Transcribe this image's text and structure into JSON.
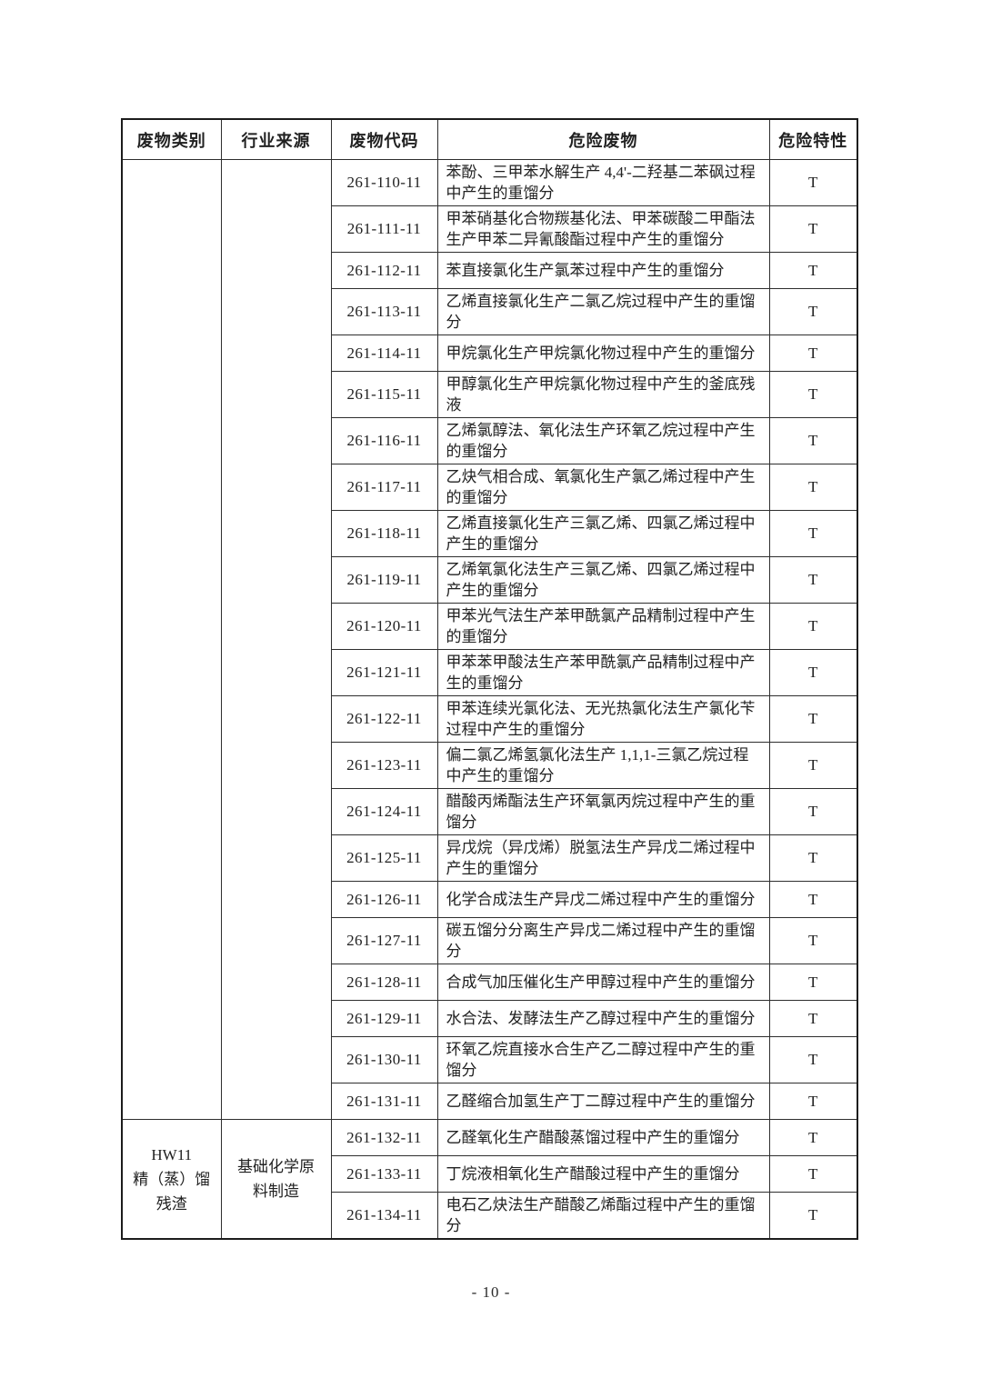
{
  "page": {
    "number_label": "- 10 -"
  },
  "table": {
    "columns": [
      "废物类别",
      "行业来源",
      "废物代码",
      "危险废物",
      "危险特性"
    ],
    "sections": [
      {
        "category": "",
        "industry": "",
        "rows": [
          {
            "code": "261-110-11",
            "waste": "苯酚、三甲苯水解生产 4,4'-二羟基二苯砜过程中产生的重馏分",
            "hazard": "T"
          },
          {
            "code": "261-111-11",
            "waste": "甲苯硝基化合物羰基化法、甲苯碳酸二甲酯法生产甲苯二异氰酸酯过程中产生的重馏分",
            "hazard": "T"
          },
          {
            "code": "261-112-11",
            "waste": "苯直接氯化生产氯苯过程中产生的重馏分",
            "hazard": "T"
          },
          {
            "code": "261-113-11",
            "waste": "乙烯直接氯化生产二氯乙烷过程中产生的重馏分",
            "hazard": "T"
          },
          {
            "code": "261-114-11",
            "waste": "甲烷氯化生产甲烷氯化物过程中产生的重馏分",
            "hazard": "T"
          },
          {
            "code": "261-115-11",
            "waste": "甲醇氯化生产甲烷氯化物过程中产生的釜底残液",
            "hazard": "T"
          },
          {
            "code": "261-116-11",
            "waste": "乙烯氯醇法、氧化法生产环氧乙烷过程中产生的重馏分",
            "hazard": "T"
          },
          {
            "code": "261-117-11",
            "waste": "乙炔气相合成、氧氯化生产氯乙烯过程中产生的重馏分",
            "hazard": "T"
          },
          {
            "code": "261-118-11",
            "waste": "乙烯直接氯化生产三氯乙烯、四氯乙烯过程中产生的重馏分",
            "hazard": "T"
          },
          {
            "code": "261-119-11",
            "waste": "乙烯氧氯化法生产三氯乙烯、四氯乙烯过程中产生的重馏分",
            "hazard": "T"
          },
          {
            "code": "261-120-11",
            "waste": "甲苯光气法生产苯甲酰氯产品精制过程中产生的重馏分",
            "hazard": "T"
          },
          {
            "code": "261-121-11",
            "waste": "甲苯苯甲酸法生产苯甲酰氯产品精制过程中产生的重馏分",
            "hazard": "T"
          },
          {
            "code": "261-122-11",
            "waste": "甲苯连续光氯化法、无光热氯化法生产氯化苄过程中产生的重馏分",
            "hazard": "T"
          },
          {
            "code": "261-123-11",
            "waste": "偏二氯乙烯氢氯化法生产 1,1,1-三氯乙烷过程中产生的重馏分",
            "hazard": "T"
          },
          {
            "code": "261-124-11",
            "waste": "醋酸丙烯酯法生产环氧氯丙烷过程中产生的重馏分",
            "hazard": "T"
          },
          {
            "code": "261-125-11",
            "waste": "异戊烷（异戊烯）脱氢法生产异戊二烯过程中产生的重馏分",
            "hazard": "T"
          },
          {
            "code": "261-126-11",
            "waste": "化学合成法生产异戊二烯过程中产生的重馏分",
            "hazard": "T"
          },
          {
            "code": "261-127-11",
            "waste": "碳五馏分分离生产异戊二烯过程中产生的重馏分",
            "hazard": "T"
          },
          {
            "code": "261-128-11",
            "waste": "合成气加压催化生产甲醇过程中产生的重馏分",
            "hazard": "T"
          },
          {
            "code": "261-129-11",
            "waste": "水合法、发酵法生产乙醇过程中产生的重馏分",
            "hazard": "T"
          },
          {
            "code": "261-130-11",
            "waste": "环氧乙烷直接水合生产乙二醇过程中产生的重馏分",
            "hazard": "T"
          },
          {
            "code": "261-131-11",
            "waste": "乙醛缩合加氢生产丁二醇过程中产生的重馏分",
            "hazard": "T"
          }
        ]
      },
      {
        "category": "HW11\n精（蒸）馏残渣",
        "industry": "基础化学原料制造",
        "rows": [
          {
            "code": "261-132-11",
            "waste": "乙醛氧化生产醋酸蒸馏过程中产生的重馏分",
            "hazard": "T"
          },
          {
            "code": "261-133-11",
            "waste": "丁烷液相氧化生产醋酸过程中产生的重馏分",
            "hazard": "T"
          },
          {
            "code": "261-134-11",
            "waste": "电石乙炔法生产醋酸乙烯酯过程中产生的重馏分",
            "hazard": "T"
          }
        ]
      }
    ]
  }
}
